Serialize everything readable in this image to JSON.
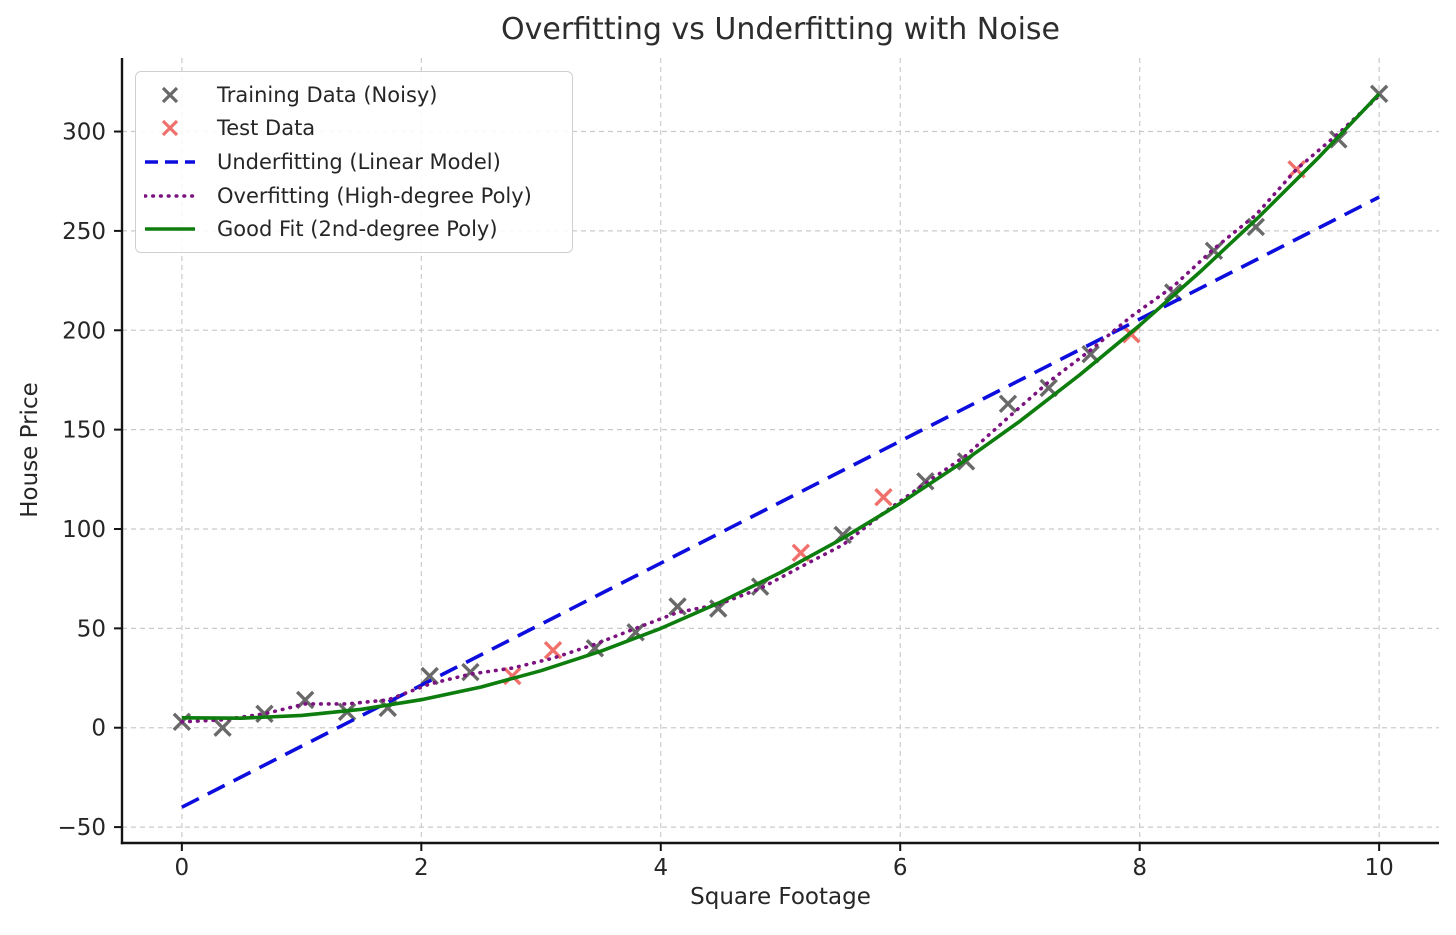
{
  "chart_data": {
    "type": "scatter+line",
    "title": "Overfitting vs Underfitting with Noise",
    "xlabel": "Square Footage",
    "ylabel": "House Price",
    "xlim": [
      -0.5,
      10.5
    ],
    "ylim": [
      -58,
      337
    ],
    "xticks": [
      0,
      2,
      4,
      6,
      8,
      10
    ],
    "yticks": [
      -50,
      0,
      50,
      100,
      150,
      200,
      250,
      300
    ],
    "grid": true,
    "grid_style": "dashed",
    "legend_position": "upper left",
    "colors": {
      "grid": "#cbcbcb",
      "spine": "#141414",
      "text": "#262626"
    },
    "series": [
      {
        "name": "Training Data (Noisy)",
        "type": "scatter",
        "marker": "x",
        "color": "#696969",
        "points": [
          [
            0,
            3
          ],
          [
            0.34,
            0
          ],
          [
            0.69,
            7
          ],
          [
            1.03,
            14
          ],
          [
            1.38,
            8
          ],
          [
            1.72,
            10
          ],
          [
            2.07,
            26
          ],
          [
            2.41,
            28
          ],
          [
            3.45,
            40
          ],
          [
            3.79,
            48
          ],
          [
            4.14,
            61
          ],
          [
            4.48,
            60
          ],
          [
            4.83,
            71
          ],
          [
            5.52,
            97
          ],
          [
            6.21,
            124
          ],
          [
            6.55,
            134
          ],
          [
            6.9,
            163
          ],
          [
            7.24,
            171
          ],
          [
            7.59,
            188
          ],
          [
            8.28,
            219
          ],
          [
            8.62,
            240
          ],
          [
            8.97,
            252
          ],
          [
            9.66,
            296
          ],
          [
            10,
            319
          ]
        ]
      },
      {
        "name": "Test Data",
        "type": "scatter",
        "marker": "x",
        "color": "#f0716c",
        "points": [
          [
            2.76,
            26
          ],
          [
            3.1,
            39
          ],
          [
            5.17,
            88
          ],
          [
            5.86,
            116
          ],
          [
            7.93,
            198
          ],
          [
            9.31,
            281
          ]
        ]
      },
      {
        "name": "Underfitting (Linear Model)",
        "type": "line",
        "style": "dashed",
        "color": "#0d0ddd",
        "points": [
          [
            0,
            -40
          ],
          [
            10,
            267
          ]
        ]
      },
      {
        "name": "Overfitting (High-degree Poly)",
        "type": "line",
        "style": "dotted",
        "color": "#7b1280",
        "points": [
          [
            0,
            3
          ],
          [
            0.34,
            4
          ],
          [
            0.69,
            7
          ],
          [
            1.03,
            12
          ],
          [
            1.38,
            12
          ],
          [
            1.72,
            14
          ],
          [
            2.07,
            22
          ],
          [
            2.41,
            27
          ],
          [
            2.76,
            30
          ],
          [
            3.1,
            35
          ],
          [
            3.45,
            42
          ],
          [
            3.79,
            50
          ],
          [
            4.14,
            58
          ],
          [
            4.48,
            62
          ],
          [
            4.83,
            70
          ],
          [
            5.17,
            81
          ],
          [
            5.52,
            92
          ],
          [
            5.86,
            108
          ],
          [
            6.21,
            123
          ],
          [
            6.55,
            137
          ],
          [
            6.9,
            156
          ],
          [
            7.24,
            174
          ],
          [
            7.59,
            190
          ],
          [
            7.93,
            207
          ],
          [
            8.28,
            222
          ],
          [
            8.62,
            241
          ],
          [
            8.97,
            258
          ],
          [
            9.31,
            281
          ],
          [
            9.66,
            299
          ],
          [
            10,
            318
          ]
        ]
      },
      {
        "name": "Good Fit (2nd-degree Poly)",
        "type": "line",
        "style": "solid",
        "color": "#0d7d0d",
        "points": [
          [
            0,
            5
          ],
          [
            0.5,
            4.8
          ],
          [
            1,
            6.2
          ],
          [
            1.5,
            9.3
          ],
          [
            2,
            14.1
          ],
          [
            2.5,
            20.5
          ],
          [
            3,
            28.7
          ],
          [
            3.5,
            38.5
          ],
          [
            4,
            50
          ],
          [
            4.5,
            63.2
          ],
          [
            5,
            78.1
          ],
          [
            5.5,
            94.6
          ],
          [
            6,
            112.9
          ],
          [
            6.5,
            132.8
          ],
          [
            7,
            154.3
          ],
          [
            7.5,
            177.6
          ],
          [
            8,
            202.5
          ],
          [
            8.5,
            229.1
          ],
          [
            9,
            257.3
          ],
          [
            9.5,
            287.3
          ],
          [
            10,
            318.9
          ]
        ]
      }
    ]
  }
}
